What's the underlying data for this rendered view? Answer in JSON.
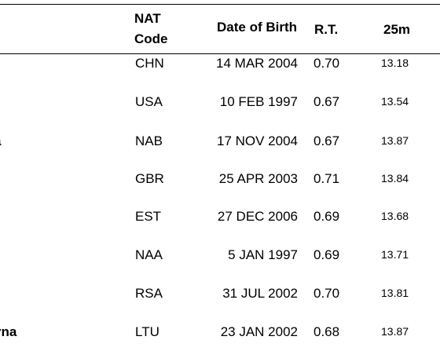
{
  "header": {
    "nat_line1": "NAT",
    "nat_line2": "Code",
    "dob": "Date of Birth",
    "rt": "R.T.",
    "split": "25m"
  },
  "rows": [
    {
      "name": "",
      "nat": "CHN",
      "dob": "14 MAR 2004",
      "rt": "0.70",
      "split": "13.18"
    },
    {
      "name": "",
      "nat": "USA",
      "dob": "10 FEB 1997",
      "rt": "0.67",
      "split": "13.54"
    },
    {
      "name": "a",
      "nat": "NAB",
      "dob": "17 NOV 2004",
      "rt": "0.67",
      "split": "13.87"
    },
    {
      "name": "",
      "nat": "GBR",
      "dob": "25 APR 2003",
      "rt": "0.71",
      "split": "13.84"
    },
    {
      "name": "",
      "nat": "EST",
      "dob": "27 DEC 2006",
      "rt": "0.69",
      "split": "13.68"
    },
    {
      "name": "",
      "nat": "NAA",
      "dob": "5 JAN 1997",
      "rt": "0.69",
      "split": "13.71"
    },
    {
      "name": "",
      "nat": "RSA",
      "dob": "31 JUL 2002",
      "rt": "0.70",
      "split": "13.81"
    },
    {
      "name": "yna",
      "nat": "LTU",
      "dob": "23 JAN 2002",
      "rt": "0.68",
      "split": "13.87"
    }
  ]
}
